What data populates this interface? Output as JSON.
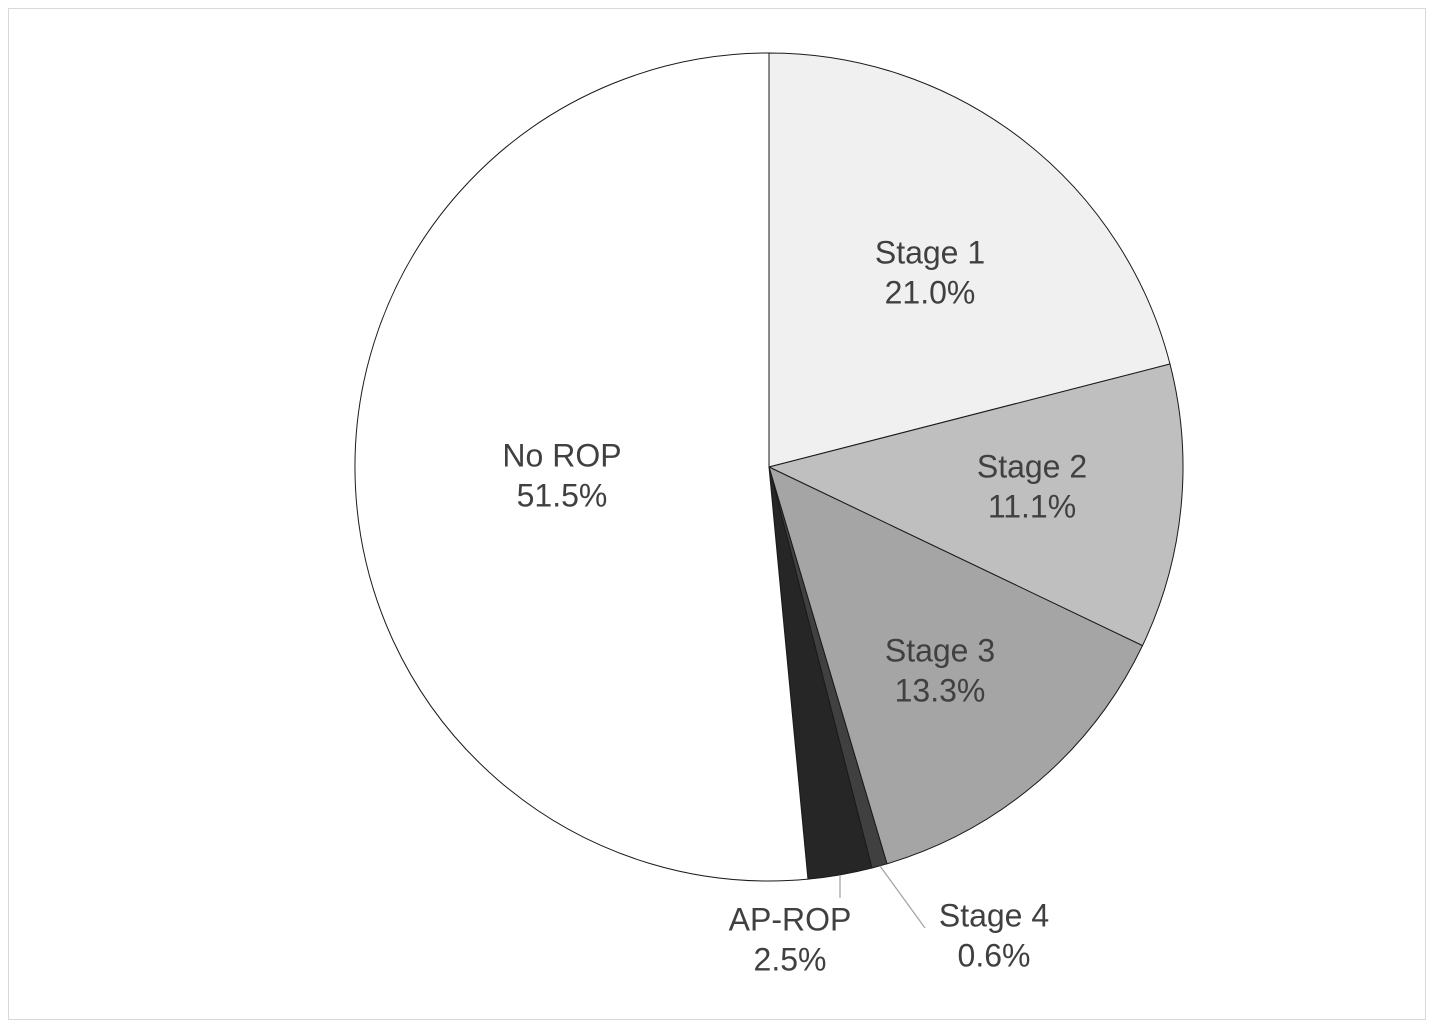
{
  "chart_data": {
    "type": "pie",
    "start": "12 o'clock",
    "direction": "clockwise",
    "slices": [
      {
        "label": "Stage 1",
        "value": 21.0,
        "value_label": "21.0%",
        "color": "#f0f0f0"
      },
      {
        "label": "Stage 2",
        "value": 11.1,
        "value_label": "11.1%",
        "color": "#bfbfbf"
      },
      {
        "label": "Stage 3",
        "value": 13.3,
        "value_label": "13.3%",
        "color": "#a5a5a5"
      },
      {
        "label": "Stage 4",
        "value": 0.6,
        "value_label": "0.6%",
        "color": "#404040"
      },
      {
        "label": "AP-ROP",
        "value": 2.5,
        "value_label": "2.5%",
        "color": "#262626"
      },
      {
        "label": "No ROP",
        "value": 51.5,
        "value_label": "51.5%",
        "color": "#ffffff"
      }
    ],
    "title": "",
    "legend": "none",
    "data_labels": "category name and percentage"
  },
  "colors": {
    "label_text": "#404040",
    "slice_border": "#1a1a1a",
    "leader_line": "#a6a6a6",
    "frame_border": "#d9d9d9"
  }
}
